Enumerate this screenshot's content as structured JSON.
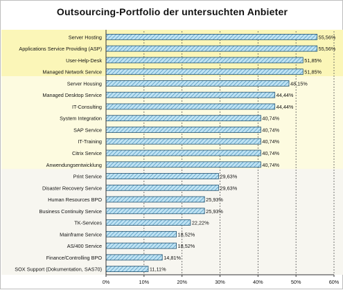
{
  "chart_data": {
    "type": "bar",
    "orientation": "horizontal",
    "title": "Outsourcing-Portfolio der untersuchten Anbieter",
    "xlabel": "",
    "ylabel": "",
    "xlim": [
      0,
      60
    ],
    "x_ticks": [
      "0%",
      "10%",
      "20%",
      "30%",
      "40%",
      "50%",
      "60%"
    ],
    "grid": "vertical dashed",
    "legend": "none",
    "categories": [
      "Server Hosting",
      "Applications Service Providing (ASP)",
      "User-Help-Desk",
      "Managed Network Service",
      "Server Housing",
      "Managed Desktop Service",
      "IT-Consulting",
      "System Integration",
      "SAP Service",
      "IT-Training",
      "Citrix Service",
      "Anwendungsentwicklung",
      "Print Service",
      "Disaster Recovery Service",
      "Human Resources BPO",
      "Business Continuity Service",
      "TK-Services",
      "Mainframe Service",
      "AS/400 Service",
      "Finance/Controlling BPO",
      "SOX Support (Dokumentation, SAS70)"
    ],
    "values": [
      55.56,
      55.56,
      51.85,
      51.85,
      48.15,
      44.44,
      44.44,
      40.74,
      40.74,
      40.74,
      40.74,
      40.74,
      29.63,
      29.63,
      25.93,
      25.93,
      22.22,
      18.52,
      18.52,
      14.81,
      11.11
    ],
    "data_labels": [
      "55,56%",
      "55,56%",
      "51,85%",
      "51,85%",
      "48,15%",
      "44,44%",
      "44,44%",
      "40,74%",
      "40,74%",
      "40,74%",
      "40,74%",
      "40,74%",
      "29,63%",
      "29,63%",
      "25,93%",
      "25,93%",
      "22,22%",
      "18,52%",
      "18,52%",
      "14,81%",
      "11,11%"
    ],
    "colors": {
      "bar_fill": "#bfe3f4",
      "bar_hatch": "#4a90b8",
      "bar_stroke": "#1e4f6e",
      "band_yellow": "#fbf6b8",
      "band_light_yellow": "#fdfbe0",
      "band_light_gray": "#f7f6f0",
      "grid": "#555555"
    },
    "bands": [
      {
        "rows": [
          0,
          3
        ],
        "color": "#fbf6b8"
      },
      {
        "rows": [
          4,
          11
        ],
        "color": "#fdfbe0"
      },
      {
        "rows": [
          12,
          20
        ],
        "color": "#f7f6f0"
      }
    ]
  }
}
